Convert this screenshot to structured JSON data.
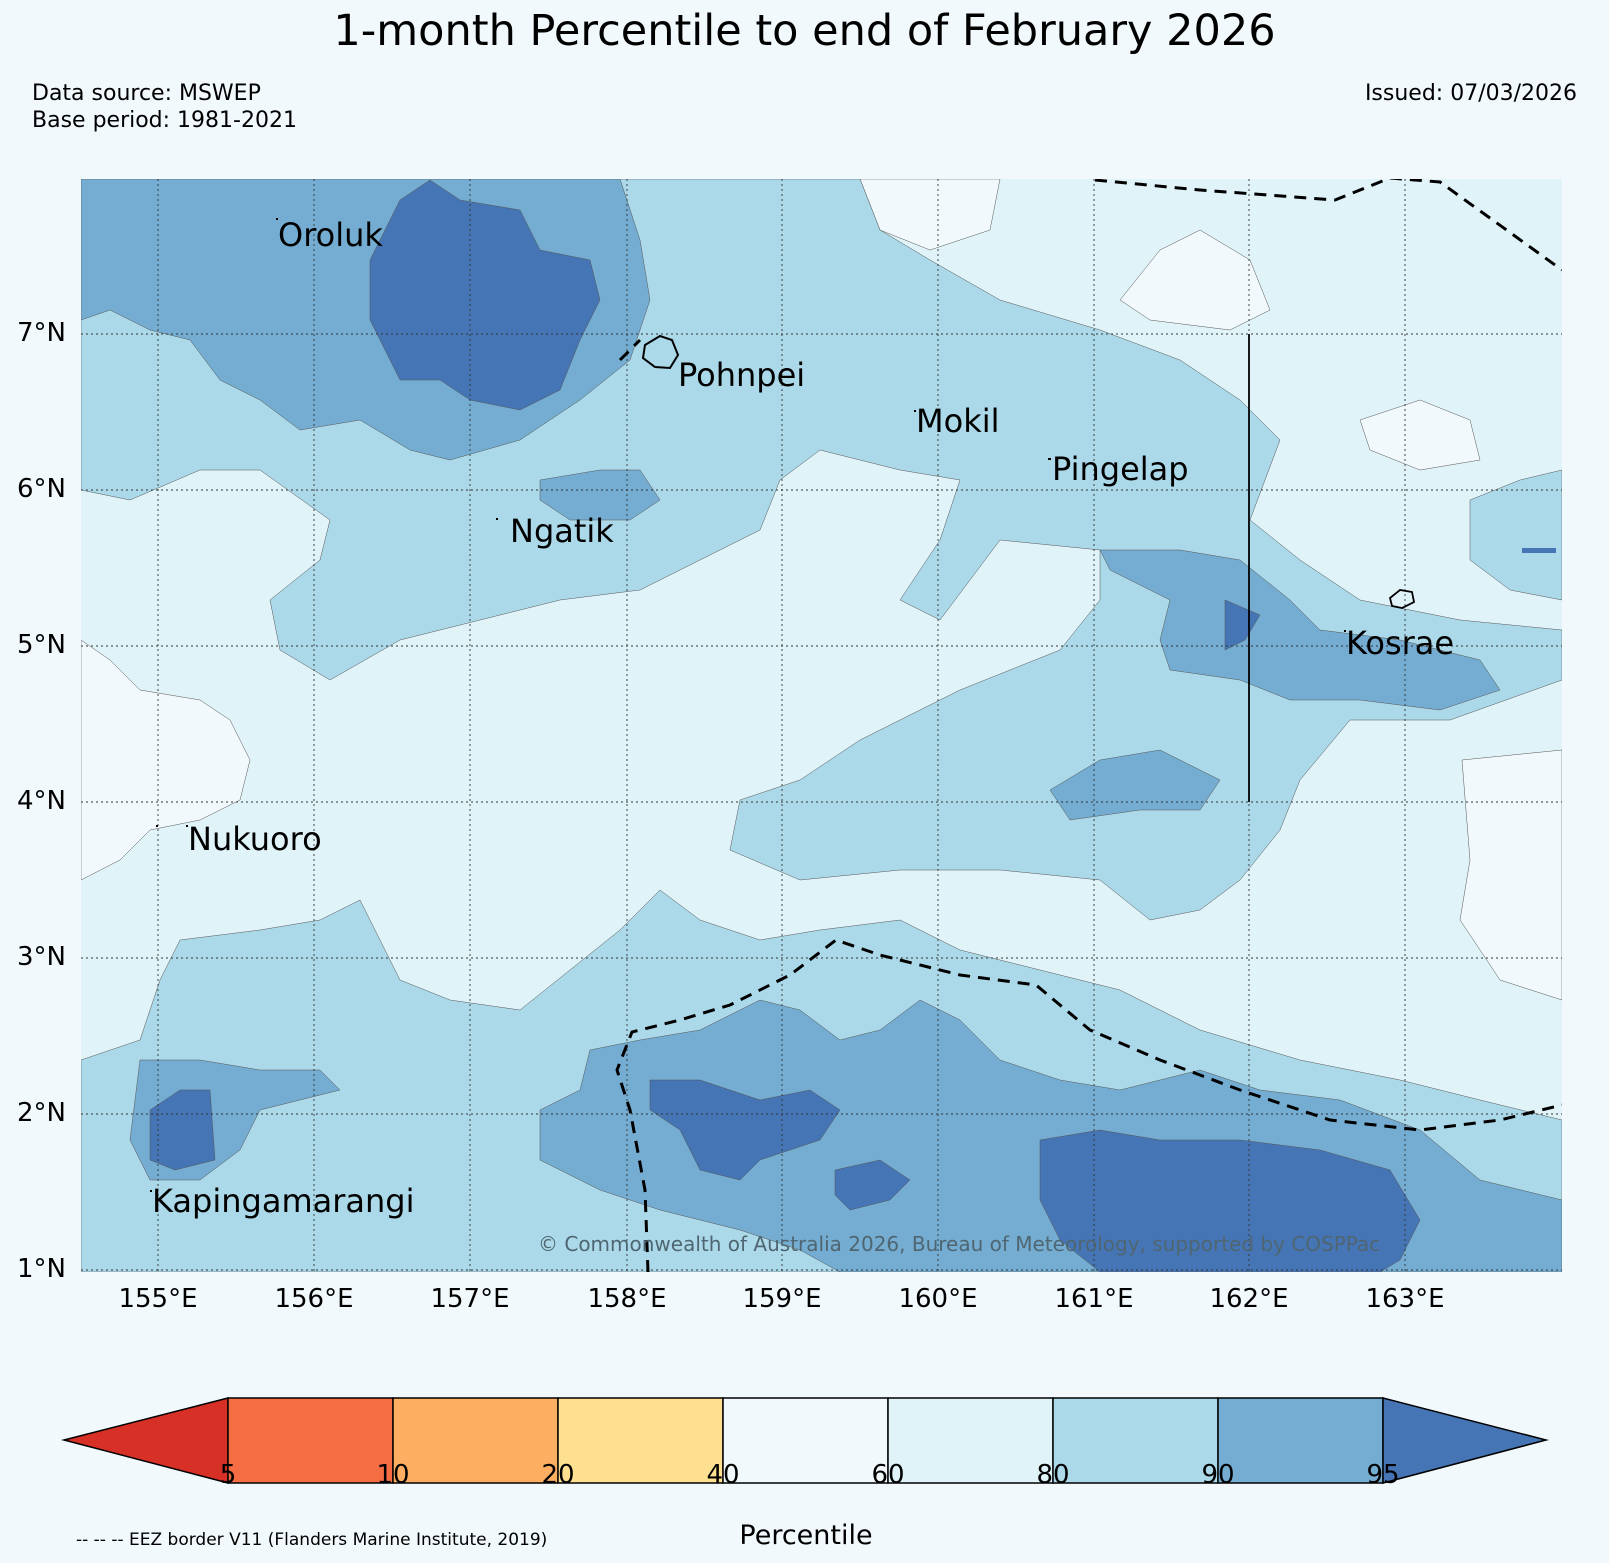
{
  "title": "1-month Percentile to end of February 2026",
  "data_source": "Data source: MSWEP",
  "base_period": "Base period: 1981-2021",
  "issued": "Issued: 07/03/2026",
  "copyright": "© Commonwealth of Australia 2026, Bureau of Meteorology, supported by COSPPac",
  "map": {
    "lat_ticks": [
      "7°N",
      "6°N",
      "5°N",
      "4°N",
      "3°N",
      "2°N",
      "1°N"
    ],
    "lon_ticks": [
      "155°E",
      "156°E",
      "157°E",
      "158°E",
      "159°E",
      "160°E",
      "161°E",
      "162°E",
      "163°E"
    ],
    "places": [
      "Oroluk",
      "Pohnpei",
      "Mokil",
      "Pingelap",
      "Ngatik",
      "Kosrae",
      "Nukuoro",
      "Kapingamarangi"
    ]
  },
  "colorbar": {
    "label": "Percentile",
    "ticks": [
      "5",
      "10",
      "20",
      "40",
      "60",
      "80",
      "90",
      "95"
    ],
    "colors": [
      "#d73027",
      "#f46d43",
      "#fdae61",
      "#fee090",
      "#f1f9fc",
      "#e0f3f8",
      "#abd9e9",
      "#74add1",
      "#4575b4"
    ]
  },
  "legend_note": "-- -- -- EEZ border V11 (Flanders Marine Institute, 2019)"
}
